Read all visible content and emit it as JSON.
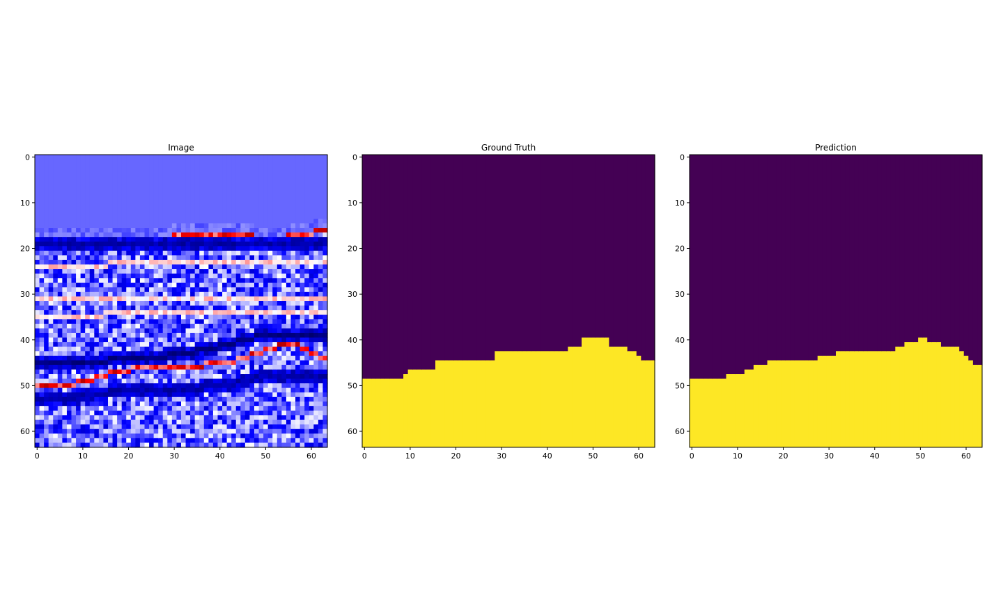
{
  "colors": {
    "background": "#ffffff",
    "seismic_blue": "#0000ff",
    "seismic_background": "#6767ff",
    "seismic_white": "#ffffff",
    "seismic_red": "#ff0000",
    "seismic_dark_red": "#a00000",
    "mask_above": "#440154",
    "mask_below": "#fde725",
    "frame": "#000000"
  },
  "chart_data": [
    {
      "type": "heatmap",
      "title": "Image",
      "colormap": "seismic",
      "grid_size": [
        64,
        64
      ],
      "xlim": [
        0,
        63
      ],
      "ylim": [
        63,
        0
      ],
      "xticks": [
        0,
        10,
        20,
        30,
        40,
        50,
        60
      ],
      "yticks": [
        0,
        10,
        20,
        30,
        40,
        50,
        60
      ],
      "grid": false,
      "horizons": [
        {
          "rows": [
            18,
            18,
            18,
            18,
            18,
            18,
            18,
            18,
            18,
            18,
            18,
            18,
            18,
            18,
            18,
            18,
            18,
            18,
            18,
            18,
            18,
            18,
            18,
            18,
            18,
            18,
            18,
            18,
            18,
            18,
            17,
            17,
            17,
            17,
            17,
            17,
            17,
            17,
            17,
            17,
            17,
            17,
            17,
            17,
            17,
            17,
            17,
            17,
            18,
            18,
            18,
            18,
            18,
            18,
            18,
            17,
            17,
            17,
            17,
            17,
            17,
            16,
            16,
            16
          ],
          "tone": "white-red"
        },
        {
          "rows": [
            19,
            19,
            19,
            19,
            19,
            19,
            19,
            19,
            19,
            19,
            19,
            19,
            19,
            19,
            19,
            19,
            19,
            19,
            19,
            19,
            19,
            19,
            19,
            19,
            19,
            19,
            19,
            19,
            19,
            19,
            19,
            19,
            19,
            19,
            19,
            19,
            19,
            19,
            19,
            19,
            19,
            19,
            19,
            19,
            19,
            19,
            19,
            19,
            19,
            19,
            19,
            19,
            19,
            19,
            19,
            19,
            19,
            19,
            19,
            19,
            19,
            19,
            19,
            19
          ],
          "tone": "blue"
        },
        {
          "rows": [
            24,
            24,
            24,
            24,
            24,
            24,
            24,
            24,
            24,
            24,
            24,
            24,
            24,
            24,
            24,
            24,
            23,
            23,
            23,
            23,
            23,
            23,
            23,
            23,
            23,
            23,
            23,
            23,
            23,
            23,
            23,
            23,
            23,
            23,
            23,
            23,
            23,
            23,
            23,
            23,
            23,
            23,
            23,
            23,
            23,
            23,
            23,
            23,
            23,
            23,
            23,
            23,
            23,
            23,
            23,
            23,
            23,
            23,
            23,
            23,
            23,
            23,
            23,
            23
          ],
          "tone": "white"
        },
        {
          "rows": [
            31,
            31,
            31,
            31,
            31,
            31,
            31,
            31,
            31,
            31,
            31,
            31,
            31,
            31,
            31,
            31,
            31,
            31,
            31,
            31,
            31,
            31,
            31,
            31,
            31,
            31,
            31,
            31,
            31,
            31,
            31,
            31,
            31,
            31,
            31,
            31,
            31,
            31,
            31,
            31,
            31,
            31,
            31,
            31,
            31,
            31,
            31,
            31,
            31,
            31,
            31,
            31,
            31,
            31,
            31,
            31,
            31,
            31,
            31,
            31,
            31,
            31,
            31,
            31
          ],
          "tone": "white"
        },
        {
          "rows": [
            35,
            35,
            35,
            35,
            35,
            35,
            35,
            35,
            35,
            35,
            35,
            35,
            35,
            35,
            35,
            34,
            34,
            34,
            34,
            34,
            34,
            34,
            34,
            34,
            34,
            34,
            34,
            34,
            34,
            34,
            34,
            34,
            34,
            34,
            34,
            34,
            34,
            34,
            34,
            34,
            34,
            34,
            34,
            34,
            34,
            34,
            34,
            34,
            34,
            34,
            34,
            34,
            34,
            34,
            34,
            34,
            34,
            34,
            34,
            34,
            34,
            34,
            34,
            34
          ],
          "tone": "white"
        },
        {
          "rows": [
            45,
            45,
            45,
            45,
            45,
            45,
            45,
            45,
            45,
            45,
            45,
            45,
            45,
            45,
            45,
            45,
            44,
            44,
            44,
            44,
            44,
            44,
            44,
            44,
            44,
            44,
            44,
            44,
            44,
            43,
            43,
            43,
            43,
            43,
            43,
            42,
            42,
            42,
            42,
            42,
            41,
            41,
            41,
            41,
            40,
            40,
            40,
            40,
            39,
            39,
            39,
            39,
            39,
            39,
            39,
            39,
            39,
            39,
            39,
            39,
            39,
            39,
            39,
            39
          ],
          "tone": "dark-blue"
        },
        {
          "rows": [
            50,
            50,
            50,
            50,
            50,
            50,
            50,
            50,
            50,
            49,
            49,
            49,
            49,
            48,
            48,
            48,
            47,
            47,
            47,
            47,
            47,
            46,
            46,
            46,
            46,
            46,
            46,
            46,
            46,
            46,
            46,
            46,
            46,
            46,
            46,
            46,
            46,
            45,
            45,
            45,
            45,
            45,
            45,
            45,
            44,
            44,
            44,
            43,
            43,
            43,
            42,
            42,
            42,
            41,
            41,
            41,
            41,
            41,
            42,
            42,
            43,
            43,
            44,
            44
          ],
          "tone": "white-red"
        },
        {
          "rows": [
            53,
            53,
            53,
            53,
            53,
            53,
            53,
            53,
            53,
            53,
            52,
            52,
            52,
            52,
            52,
            52,
            51,
            51,
            51,
            51,
            51,
            51,
            51,
            51,
            51,
            51,
            51,
            51,
            51,
            51,
            51,
            51,
            51,
            51,
            51,
            51,
            51,
            50,
            50,
            50,
            50,
            50,
            50,
            50,
            49,
            49,
            49,
            48,
            48,
            48,
            48,
            48,
            48,
            48,
            48,
            48,
            48,
            48,
            48,
            48,
            48,
            48,
            48,
            48
          ],
          "tone": "blue"
        }
      ]
    },
    {
      "type": "heatmap",
      "title": "Ground Truth",
      "colormap": "viridis",
      "grid_size": [
        64,
        64
      ],
      "xlim": [
        0,
        63
      ],
      "ylim": [
        63,
        0
      ],
      "xticks": [
        0,
        10,
        20,
        30,
        40,
        50,
        60
      ],
      "yticks": [
        0,
        10,
        20,
        30,
        40,
        50,
        60
      ],
      "grid": false,
      "classes": [
        0,
        1
      ],
      "boundary_rows": [
        49,
        49,
        49,
        49,
        49,
        49,
        49,
        49,
        49,
        48,
        47,
        47,
        47,
        47,
        47,
        47,
        45,
        45,
        45,
        45,
        45,
        45,
        45,
        45,
        45,
        45,
        45,
        45,
        45,
        43,
        43,
        43,
        43,
        43,
        43,
        43,
        43,
        43,
        43,
        43,
        43,
        43,
        43,
        43,
        43,
        42,
        42,
        42,
        40,
        40,
        40,
        40,
        40,
        40,
        42,
        42,
        42,
        42,
        43,
        43,
        44,
        45,
        45,
        45
      ]
    },
    {
      "type": "heatmap",
      "title": "Prediction",
      "colormap": "viridis",
      "grid_size": [
        64,
        64
      ],
      "xlim": [
        0,
        63
      ],
      "ylim": [
        63,
        0
      ],
      "xticks": [
        0,
        10,
        20,
        30,
        40,
        50,
        60
      ],
      "yticks": [
        0,
        10,
        20,
        30,
        40,
        50,
        60
      ],
      "grid": false,
      "classes": [
        0,
        1
      ],
      "boundary_rows": [
        49,
        49,
        49,
        49,
        49,
        49,
        49,
        49,
        48,
        48,
        48,
        48,
        47,
        47,
        46,
        46,
        46,
        45,
        45,
        45,
        45,
        45,
        45,
        45,
        45,
        45,
        45,
        45,
        44,
        44,
        44,
        44,
        43,
        43,
        43,
        43,
        43,
        43,
        43,
        43,
        43,
        43,
        43,
        43,
        43,
        42,
        42,
        41,
        41,
        41,
        40,
        40,
        41,
        41,
        41,
        42,
        42,
        42,
        42,
        43,
        44,
        45,
        46,
        46
      ]
    }
  ]
}
